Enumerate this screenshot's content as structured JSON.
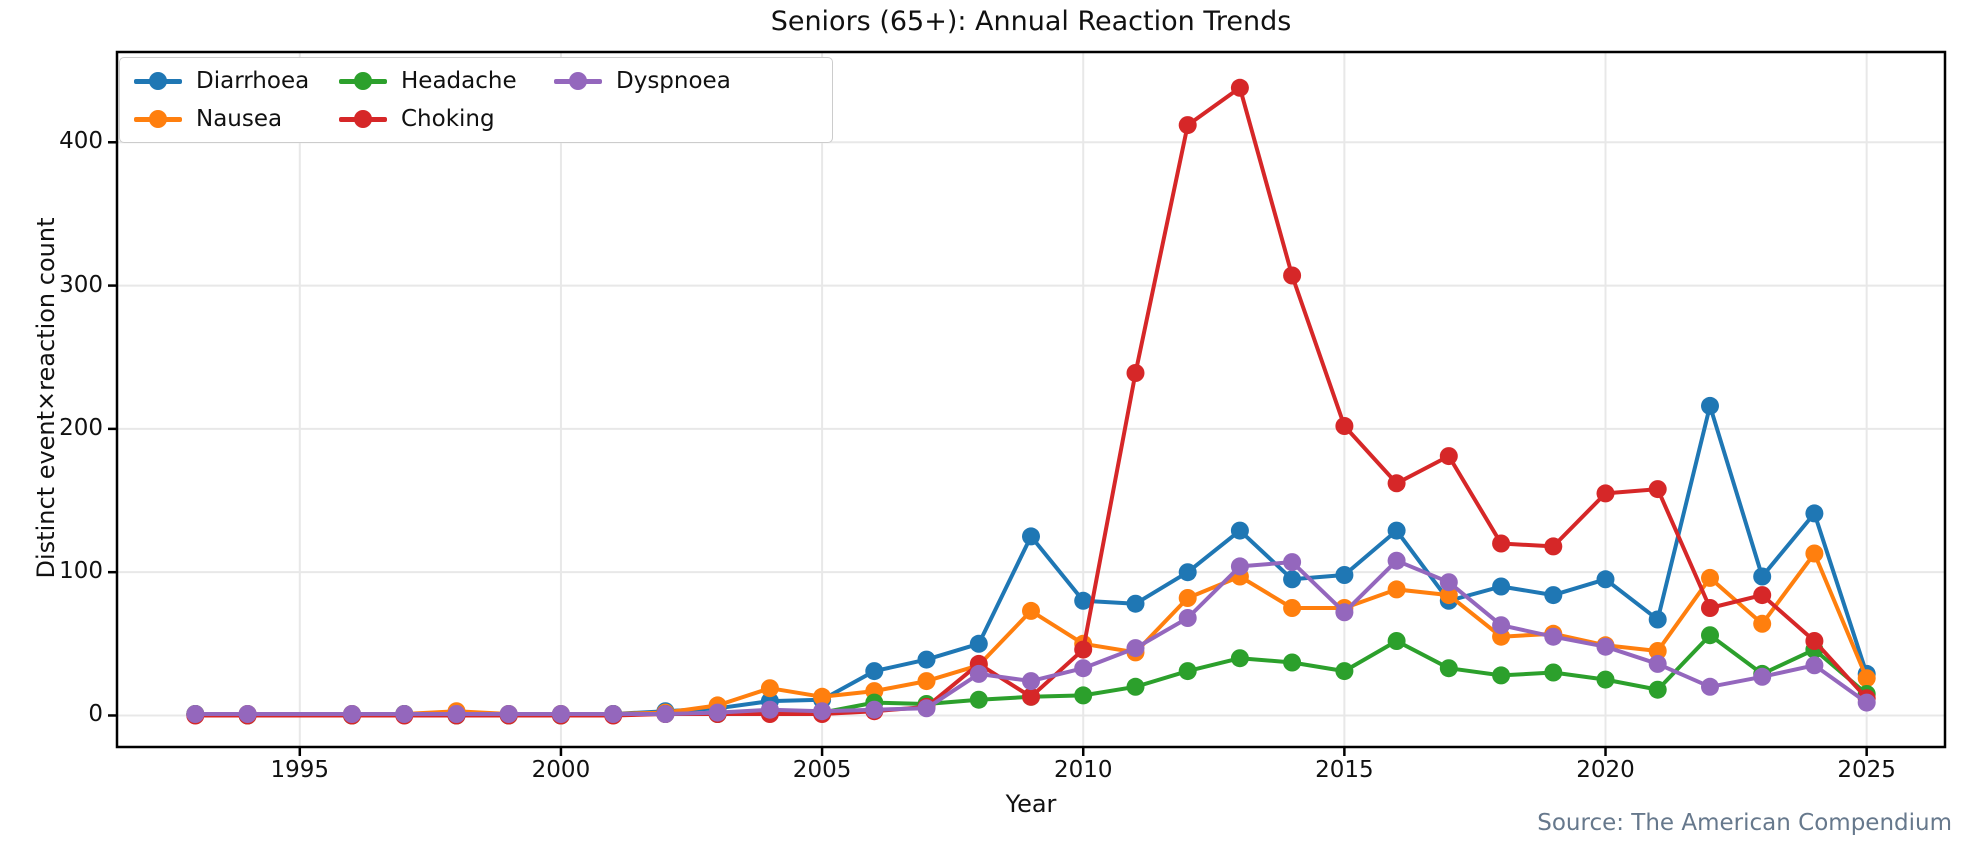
{
  "title": "Seniors (65+): Annual Reaction Trends",
  "source_note": "Source: The American Compendium",
  "colors": {
    "background": "#ffffff",
    "grid": "#e8e8e8",
    "spine": "#000000",
    "text": "#111111",
    "source_text": "#66788c"
  },
  "chart_data": {
    "type": "line",
    "title": "Seniors (65+): Annual Reaction Trends",
    "xlabel": "Year",
    "ylabel": "Distinct event×reaction count",
    "grid": true,
    "legend_position": "upper left",
    "legend_columns": 3,
    "marker": "circle",
    "xlim": [
      1991.5,
      2026.5
    ],
    "ylim": [
      -22,
      463
    ],
    "xticks": [
      1995,
      2000,
      2005,
      2010,
      2015,
      2020,
      2025
    ],
    "yticks": [
      0,
      100,
      200,
      300,
      400
    ],
    "x": [
      1993,
      1994,
      1996,
      1997,
      1998,
      1999,
      2000,
      2001,
      2002,
      2003,
      2004,
      2005,
      2006,
      2007,
      2008,
      2009,
      2010,
      2011,
      2012,
      2013,
      2014,
      2015,
      2016,
      2017,
      2018,
      2019,
      2020,
      2021,
      2022,
      2023,
      2024,
      2025
    ],
    "x_note": "no data point for 1995; lines connect 1994 to 1996",
    "series": [
      {
        "name": "Diarrhoea",
        "color": "#1f77b4",
        "values": [
          1,
          1,
          1,
          1,
          1,
          1,
          1,
          1,
          3,
          5,
          10,
          11,
          31,
          39,
          50,
          125,
          80,
          78,
          100,
          129,
          95,
          98,
          129,
          80,
          90,
          84,
          95,
          67,
          216,
          97,
          141,
          29
        ]
      },
      {
        "name": "Nausea",
        "color": "#ff7f0e",
        "values": [
          1,
          1,
          1,
          1,
          3,
          1,
          1,
          1,
          2,
          7,
          19,
          13,
          17,
          24,
          35,
          73,
          50,
          44,
          82,
          97,
          75,
          75,
          88,
          84,
          55,
          57,
          49,
          45,
          96,
          64,
          113,
          26
        ]
      },
      {
        "name": "Headache",
        "color": "#2ca02c",
        "values": [
          1,
          0,
          0,
          1,
          0,
          0,
          0,
          1,
          1,
          1,
          2,
          2,
          9,
          8,
          11,
          13,
          14,
          20,
          31,
          40,
          37,
          31,
          52,
          33,
          28,
          30,
          25,
          18,
          56,
          29,
          46,
          15
        ]
      },
      {
        "name": "Choking",
        "color": "#d62728",
        "values": [
          0,
          0,
          0,
          0,
          0,
          0,
          0,
          0,
          1,
          1,
          1,
          1,
          3,
          6,
          36,
          13,
          46,
          239,
          412,
          438,
          307,
          202,
          162,
          181,
          120,
          118,
          155,
          158,
          75,
          84,
          52,
          12
        ]
      },
      {
        "name": "Dyspnoea",
        "color": "#9467bd",
        "values": [
          1,
          1,
          1,
          1,
          1,
          1,
          1,
          1,
          1,
          2,
          4,
          3,
          4,
          5,
          29,
          24,
          33,
          47,
          68,
          104,
          107,
          72,
          108,
          93,
          63,
          55,
          48,
          36,
          20,
          27,
          35,
          9
        ]
      }
    ]
  }
}
